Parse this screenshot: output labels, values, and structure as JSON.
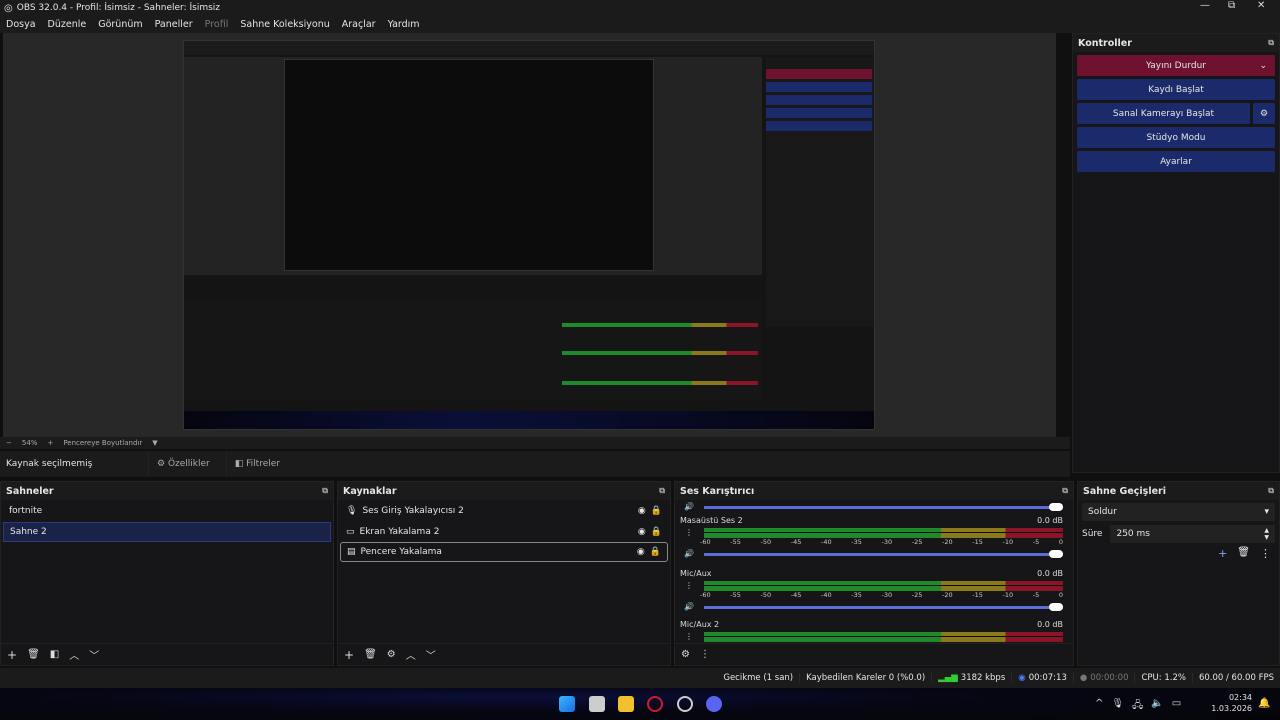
{
  "window": {
    "title": "OBS 32.0.4 - Profil: İsimsiz - Sahneler: İsimsiz",
    "minimize": "—",
    "maximize": "⧉",
    "close": "✕"
  },
  "menu": [
    "Dosya",
    "Düzenle",
    "Görünüm",
    "Paneller",
    "Profil",
    "Sahne Koleksiyonu",
    "Araçlar",
    "Yardım"
  ],
  "zoombar": {
    "minus": "−",
    "zoom": "54%",
    "plus": "+",
    "mode": "Pencereye Boyutlandır",
    "dropdown": "▼"
  },
  "source_toolbar": {
    "status": "Kaynak seçilmemiş",
    "properties": "Özellikler",
    "filters": "Filtreler"
  },
  "controls": {
    "title": "Kontroller",
    "buttons": [
      "Yayını Durdur",
      "Kaydı Başlat",
      "Sanal Kamerayı Başlat",
      "Stüdyo Modu",
      "Ayarlar"
    ],
    "stream_color": "#6e1230",
    "button_color": "#1b2a6a"
  },
  "scenes": {
    "title": "Sahneler",
    "items": [
      "fortnite",
      "Sahne 2"
    ],
    "selected": "Sahne 2"
  },
  "sources": {
    "title": "Kaynaklar",
    "items": [
      {
        "name": "Ses Giriş Yakalayıcısı 2",
        "icon": "microphone-icon"
      },
      {
        "name": "Ekran Yakalama 2",
        "icon": "monitor-icon"
      },
      {
        "name": "Pencere Yakalama",
        "icon": "window-icon"
      }
    ]
  },
  "mixer": {
    "title": "Ses Karıştırıcı",
    "scale": [
      "-60",
      "-55",
      "-50",
      "-45",
      "-40",
      "-35",
      "-30",
      "-25",
      "-20",
      "-15",
      "-10",
      "-5",
      "0"
    ],
    "channels": [
      {
        "name": "Masaüstü Ses 2",
        "level": "0.0 dB"
      },
      {
        "name": "Mic/Aux",
        "level": "0.0 dB"
      },
      {
        "name": "Mic/Aux 2",
        "level": "0.0 dB"
      }
    ]
  },
  "transitions": {
    "title": "Sahne Geçişleri",
    "type": "Soldur",
    "duration_label": "Süre",
    "duration": "250 ms"
  },
  "status": {
    "delay": "Gecikme (1 san)",
    "dropped": "Kaybedilen Kareler 0 (%0.0)",
    "bitrate": "3182 kbps",
    "stream_time": "00:07:13",
    "rec_time": "00:00:00",
    "cpu": "CPU: 1.2%",
    "fps": "60.00 / 60.00 FPS"
  },
  "taskbar": {
    "time": "02:34",
    "date": "1.03.2026"
  }
}
